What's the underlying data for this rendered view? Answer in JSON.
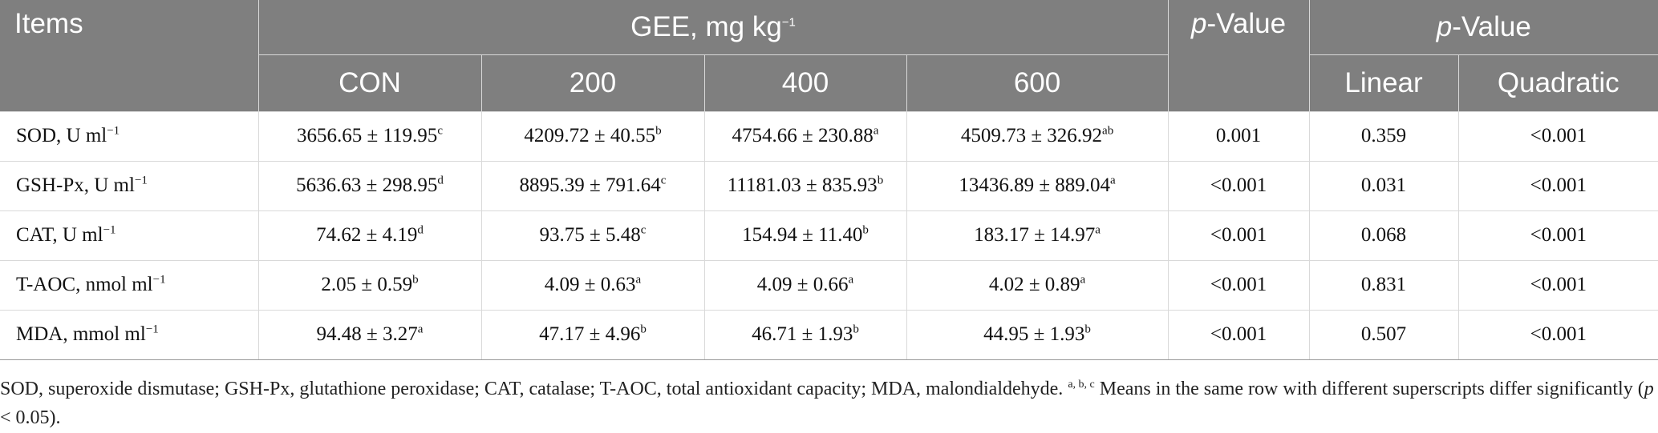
{
  "header": {
    "items": "Items",
    "gee": "GEE, mg kg",
    "gee_sup": "−1",
    "pvalue_italic": "p",
    "pvalue_rest": "-Value",
    "groups": [
      "CON",
      "200",
      "400",
      "600"
    ],
    "linear": "Linear",
    "quadratic": "Quadratic"
  },
  "rows": [
    {
      "item": "SOD, U ml",
      "item_sup": "−1",
      "cells": [
        [
          "3656.65 ± 119.95",
          "c"
        ],
        [
          "4209.72 ± 40.55",
          "b"
        ],
        [
          "4754.66 ± 230.88",
          "a"
        ],
        [
          "4509.73 ± 326.92",
          "ab"
        ]
      ],
      "p": "0.001",
      "linear": "0.359",
      "quadratic": "<0.001"
    },
    {
      "item": "GSH-Px, U ml",
      "item_sup": "−1",
      "cells": [
        [
          "5636.63 ± 298.95",
          "d"
        ],
        [
          "8895.39 ± 791.64",
          "c"
        ],
        [
          "11181.03 ± 835.93",
          "b"
        ],
        [
          "13436.89 ± 889.04",
          "a"
        ]
      ],
      "p": "<0.001",
      "linear": "0.031",
      "quadratic": "<0.001"
    },
    {
      "item": "CAT, U ml",
      "item_sup": "−1",
      "cells": [
        [
          "74.62 ± 4.19",
          "d"
        ],
        [
          "93.75 ± 5.48",
          "c"
        ],
        [
          "154.94 ± 11.40",
          "b"
        ],
        [
          "183.17 ± 14.97",
          "a"
        ]
      ],
      "p": "<0.001",
      "linear": "0.068",
      "quadratic": "<0.001"
    },
    {
      "item": "T-AOC, nmol ml",
      "item_sup": "−1",
      "cells": [
        [
          "2.05 ± 0.59",
          "b"
        ],
        [
          "4.09 ± 0.63",
          "a"
        ],
        [
          "4.09 ± 0.66",
          "a"
        ],
        [
          "4.02 ± 0.89",
          "a"
        ]
      ],
      "p": "<0.001",
      "linear": "0.831",
      "quadratic": "<0.001"
    },
    {
      "item": "MDA, mmol ml",
      "item_sup": "−1",
      "cells": [
        [
          "94.48 ± 3.27",
          "a"
        ],
        [
          "47.17 ± 4.96",
          "b"
        ],
        [
          "46.71 ± 1.93",
          "b"
        ],
        [
          "44.95 ± 1.93",
          "b"
        ]
      ],
      "p": "<0.001",
      "linear": "0.507",
      "quadratic": "<0.001"
    }
  ],
  "footnote": {
    "text": "SOD, superoxide dismutase; GSH-Px, glutathione peroxidase; CAT, catalase; T-AOC, total antioxidant capacity; MDA, malondialdehyde. ",
    "sup": "a, b, c",
    "text2": " Means in the same row with different superscripts differ significantly (",
    "p_italic": "p",
    "text3": " < 0.05)."
  }
}
